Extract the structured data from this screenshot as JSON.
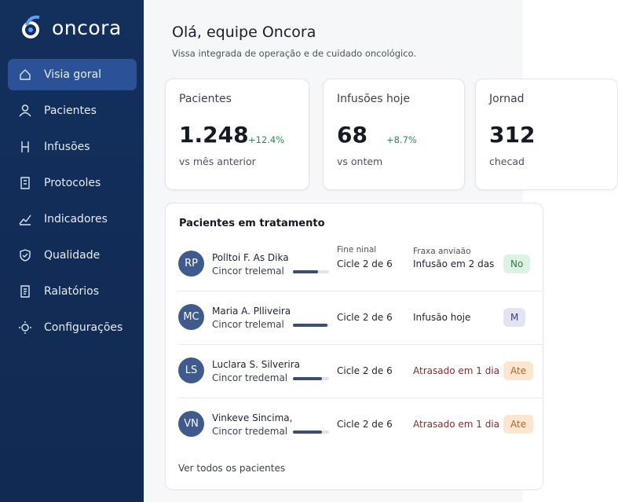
{
  "logo": "oncora",
  "nav": [
    "Visia goral",
    "Pacientes",
    "Infusões",
    "Protocoles",
    "Indicadores",
    "Qualidade",
    "Ralatórios",
    "Configurações"
  ],
  "header": {
    "title": "Olá, equipe Oncora",
    "subtitle": "Vissa integrada de operação e de cuidado oncológico."
  },
  "cards": [
    {
      "label": "Pacientes",
      "value": "1.248",
      "change": "+12.4%",
      "note": "vs mês anterior"
    },
    {
      "label": "Infusões hoje",
      "value": "68",
      "change": "+8.7%",
      "note": "vs ontem"
    },
    {
      "label": "Jornad",
      "value": "312",
      "note": "checad"
    }
  ],
  "table": {
    "title": "Pacientes em tratamento",
    "columns": [
      "Fine ninal",
      "Fraxa anviaão"
    ],
    "rows": [
      {
        "initials": "RP",
        "name": "Polltoi F. As Dika",
        "plan": "Cincor trelemal",
        "progress": 0.7,
        "cycle": "Cicle 2 de 6",
        "status": "Infusão em 2 das",
        "badge": "No",
        "tone": "green"
      },
      {
        "initials": "MC",
        "name": "Maria A. Plliveira",
        "plan": "Cincor trelemal",
        "progress": 0.95,
        "cycle": "Cicle 2 de 6",
        "status": "Infusão hoje",
        "badge": "M",
        "tone": "purple"
      },
      {
        "initials": "LS",
        "name": "Luclara S. Silverira",
        "plan": "Cincor tredemal",
        "progress": 0.8,
        "cycle": "Cicle 2 de 6",
        "status": "Atrasado em 1 dia",
        "badge": "Ate",
        "tone": "orange"
      },
      {
        "initials": "VN",
        "name": "Vinkeve Sincima,",
        "plan": "Cincor tredemal",
        "progress": 0.8,
        "cycle": "Cicle 2 de 6",
        "status": "Atrasado em 1 dia",
        "badge": "Ate",
        "tone": "orange"
      }
    ],
    "footer": "Ver todos os pacientes"
  }
}
